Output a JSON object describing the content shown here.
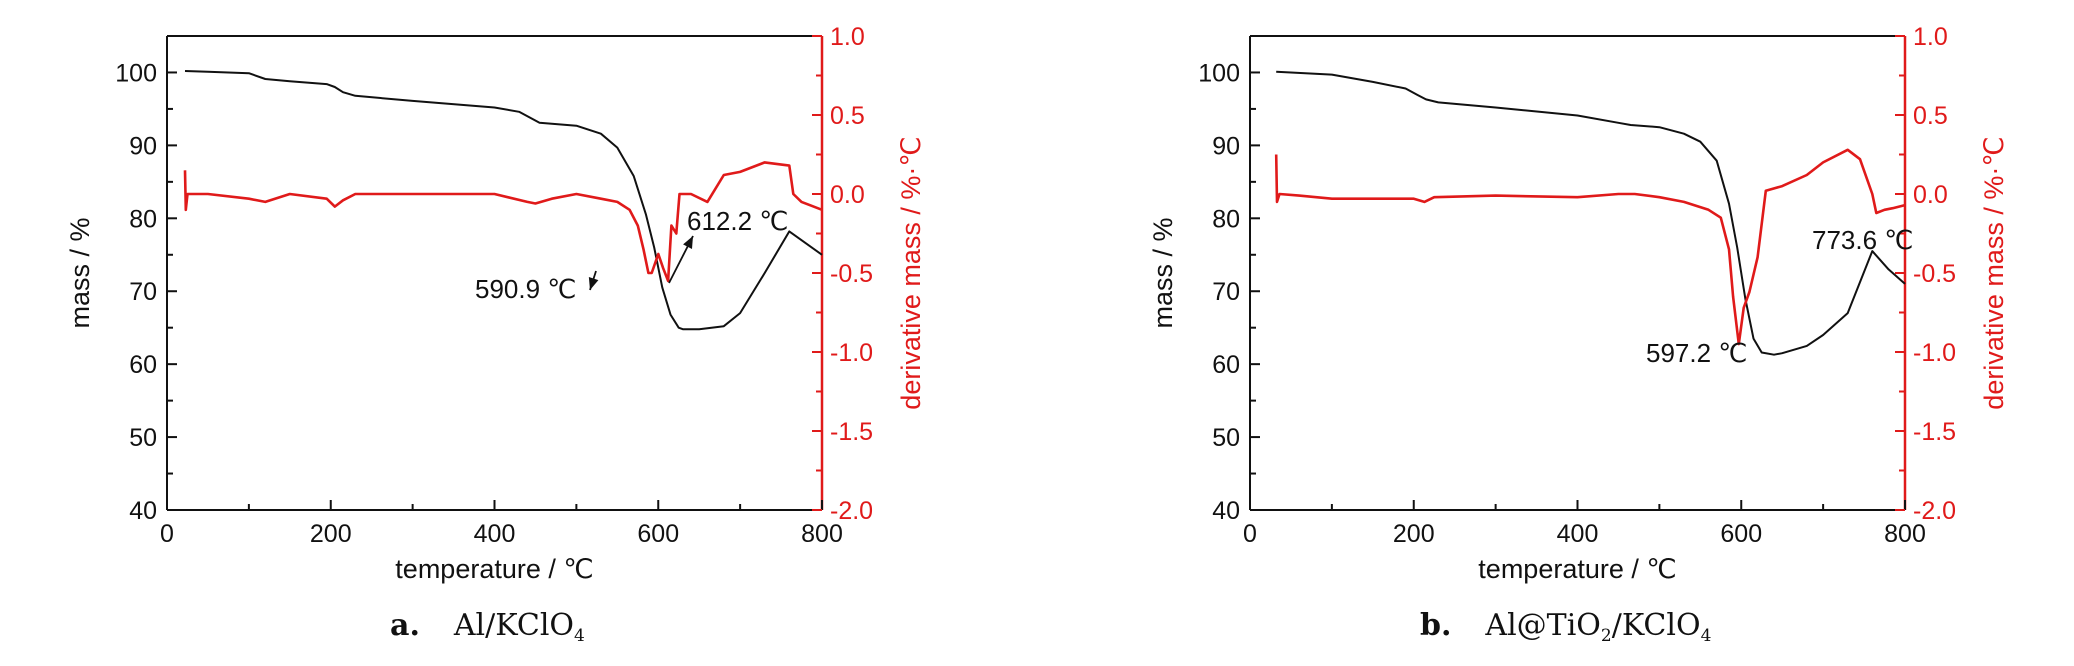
{
  "colors": {
    "mass": "#111111",
    "derivative": "#e01a1a"
  },
  "panels": [
    {
      "caption": {
        "letter": "a.",
        "parts": [
          {
            "t": "Al/KClO"
          },
          {
            "sub": "4"
          }
        ]
      },
      "chart_data": {
        "type": "line",
        "xlabel": "temperature / ℃",
        "ylabel": "mass / %",
        "y2label": "derivative mass / %·℃",
        "xlim": [
          0,
          800
        ],
        "ylim": [
          40,
          105
        ],
        "y2lim": [
          -2.0,
          1.0
        ],
        "xticks": [
          "0",
          "200",
          "400",
          "600",
          "800"
        ],
        "yticks": [
          "40",
          "50",
          "60",
          "70",
          "80",
          "90",
          "100"
        ],
        "y2ticks": [
          "-2.0",
          "-1.5",
          "-1.0",
          "-0.5",
          "0.0",
          "0.5",
          "1.0"
        ],
        "series": [
          {
            "axis": "left",
            "x": [
              22,
              50,
              100,
              120,
              150,
              195,
              205,
              215,
              230,
              300,
              400,
              430,
              455,
              500,
              530,
              550,
              570,
              585,
              595,
              605,
              615,
              625,
              630,
              650,
              680,
              700,
              730,
              760,
              800
            ],
            "y": [
              100.2,
              100.1,
              99.9,
              99.1,
              98.8,
              98.4,
              98.0,
              97.3,
              96.8,
              96.1,
              95.2,
              94.6,
              93.1,
              92.7,
              91.6,
              89.7,
              85.8,
              80.5,
              76.0,
              70.5,
              66.8,
              65.0,
              64.8,
              64.8,
              65.2,
              67.0,
              72.5,
              78.2,
              75.0
            ]
          },
          {
            "axis": "right",
            "x": [
              22,
              23,
              25,
              50,
              100,
              120,
              150,
              195,
              205,
              215,
              230,
              300,
              400,
              440,
              450,
              470,
              500,
              530,
              550,
              565,
              575,
              582,
              588,
              592,
              600,
              606,
              612,
              616,
              622,
              626,
              640,
              660,
              680,
              700,
              730,
              760,
              765,
              775,
              785,
              800
            ],
            "y": [
              0.15,
              -0.1,
              0.0,
              0.0,
              -0.03,
              -0.05,
              0.0,
              -0.03,
              -0.08,
              -0.04,
              0.0,
              0.0,
              0.0,
              -0.05,
              -0.06,
              -0.03,
              0.0,
              -0.03,
              -0.05,
              -0.1,
              -0.2,
              -0.35,
              -0.5,
              -0.5,
              -0.38,
              -0.47,
              -0.55,
              -0.2,
              -0.25,
              0.0,
              0.0,
              -0.05,
              0.12,
              0.14,
              0.2,
              0.18,
              0.0,
              -0.05,
              -0.07,
              -0.1
            ]
          }
        ],
        "annotations": [
          "590.9 ℃",
          "612.2 ℃"
        ]
      }
    },
    {
      "caption": {
        "letter": "b.",
        "parts": [
          {
            "t": "Al@TiO"
          },
          {
            "sub": "2"
          },
          {
            "t": "/KClO"
          },
          {
            "sub": "4"
          }
        ]
      },
      "chart_data": {
        "type": "line",
        "xlabel": "temperature / ℃",
        "ylabel": "mass / %",
        "y2label": "derivative mass / %·℃",
        "xlim": [
          0,
          800
        ],
        "ylim": [
          40,
          105
        ],
        "y2lim": [
          -2.0,
          1.0
        ],
        "xticks": [
          "0",
          "200",
          "400",
          "600",
          "800"
        ],
        "yticks": [
          "40",
          "50",
          "60",
          "70",
          "80",
          "90",
          "100"
        ],
        "y2ticks": [
          "-2.0",
          "-1.5",
          "-1.0",
          "-0.5",
          "0.0",
          "0.5",
          "1.0"
        ],
        "series": [
          {
            "axis": "left",
            "x": [
              32,
              50,
              100,
              150,
              190,
              205,
              215,
              230,
              300,
              400,
              450,
              465,
              500,
              530,
              550,
              570,
              585,
              595,
              605,
              615,
              625,
              640,
              650,
              680,
              700,
              730,
              760,
              780,
              800
            ],
            "y": [
              100.1,
              100.0,
              99.7,
              98.7,
              97.8,
              96.9,
              96.3,
              95.9,
              95.2,
              94.1,
              93.1,
              92.8,
              92.5,
              91.6,
              90.5,
              87.9,
              82.0,
              76.0,
              69.0,
              63.5,
              61.6,
              61.3,
              61.5,
              62.5,
              64.0,
              67.0,
              75.5,
              73.0,
              71.0
            ]
          },
          {
            "axis": "right",
            "x": [
              32,
              33,
              36,
              60,
              100,
              150,
              200,
              213,
              225,
              300,
              400,
              450,
              470,
              500,
              530,
              560,
              575,
              585,
              590,
              597,
              603,
              610,
              620,
              630,
              650,
              680,
              700,
              730,
              745,
              760,
              765,
              775,
              785,
              800
            ],
            "y": [
              0.25,
              -0.05,
              0.0,
              -0.01,
              -0.03,
              -0.03,
              -0.03,
              -0.05,
              -0.02,
              -0.01,
              -0.02,
              0.0,
              0.0,
              -0.02,
              -0.05,
              -0.1,
              -0.15,
              -0.35,
              -0.65,
              -0.95,
              -0.72,
              -0.62,
              -0.4,
              0.02,
              0.05,
              0.12,
              0.2,
              0.28,
              0.22,
              0.0,
              -0.12,
              -0.1,
              -0.09,
              -0.07
            ]
          }
        ],
        "annotations": [
          "597.2 ℃",
          "773.6 ℃"
        ]
      }
    }
  ]
}
